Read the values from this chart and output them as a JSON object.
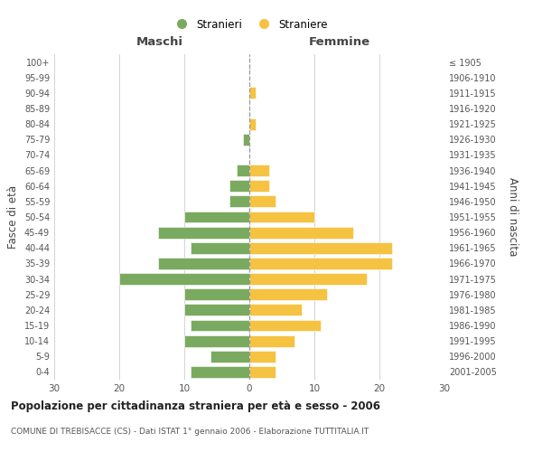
{
  "age_groups": [
    "0-4",
    "5-9",
    "10-14",
    "15-19",
    "20-24",
    "25-29",
    "30-34",
    "35-39",
    "40-44",
    "45-49",
    "50-54",
    "55-59",
    "60-64",
    "65-69",
    "70-74",
    "75-79",
    "80-84",
    "85-89",
    "90-94",
    "95-99",
    "100+"
  ],
  "birth_years": [
    "2001-2005",
    "1996-2000",
    "1991-1995",
    "1986-1990",
    "1981-1985",
    "1976-1980",
    "1971-1975",
    "1966-1970",
    "1961-1965",
    "1956-1960",
    "1951-1955",
    "1946-1950",
    "1941-1945",
    "1936-1940",
    "1931-1935",
    "1926-1930",
    "1921-1925",
    "1916-1920",
    "1911-1915",
    "1906-1910",
    "≤ 1905"
  ],
  "maschi": [
    9,
    6,
    10,
    9,
    10,
    10,
    20,
    14,
    9,
    14,
    10,
    3,
    3,
    2,
    0,
    1,
    0,
    0,
    0,
    0,
    0
  ],
  "femmine": [
    4,
    4,
    7,
    11,
    8,
    12,
    18,
    22,
    22,
    16,
    10,
    4,
    3,
    3,
    0,
    0,
    1,
    0,
    1,
    0,
    0
  ],
  "color_maschi": "#7aaa5f",
  "color_femmine": "#f5c242",
  "background_color": "#ffffff",
  "grid_color": "#cccccc",
  "title": "Popolazione per cittadinanza straniera per età e sesso - 2006",
  "subtitle": "COMUNE DI TREBISACCE (CS) - Dati ISTAT 1° gennaio 2006 - Elaborazione TUTTITALIA.IT",
  "xlabel_left": "Maschi",
  "xlabel_right": "Femmine",
  "ylabel_left": "Fasce di età",
  "ylabel_right": "Anni di nascita",
  "legend_maschi": "Stranieri",
  "legend_femmine": "Straniere",
  "xlim": 30,
  "dashed_line_color": "#999999"
}
